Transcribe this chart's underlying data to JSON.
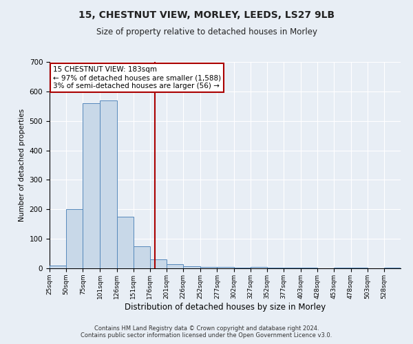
{
  "title_line1": "15, CHESTNUT VIEW, MORLEY, LEEDS, LS27 9LB",
  "title_line2": "Size of property relative to detached houses in Morley",
  "xlabel": "Distribution of detached houses by size in Morley",
  "ylabel": "Number of detached properties",
  "bar_left_edges": [
    25,
    50,
    75,
    101,
    126,
    151,
    176,
    201,
    226,
    252,
    277,
    302,
    327,
    352,
    377,
    403,
    428,
    453,
    478,
    503,
    528
  ],
  "bar_heights": [
    10,
    200,
    560,
    570,
    175,
    75,
    30,
    15,
    8,
    5,
    5,
    2,
    5,
    2,
    2,
    2,
    0,
    2,
    2,
    0,
    2
  ],
  "bar_widths": [
    25,
    25,
    26,
    25,
    25,
    25,
    25,
    25,
    26,
    25,
    25,
    25,
    25,
    25,
    26,
    25,
    25,
    25,
    25,
    25,
    25
  ],
  "bar_color": "#c8d8e8",
  "bar_edge_color": "#5588bb",
  "property_line_x": 183,
  "property_line_color": "#aa0000",
  "ylim": [
    0,
    700
  ],
  "yticks": [
    0,
    100,
    200,
    300,
    400,
    500,
    600,
    700
  ],
  "xtick_labels": [
    "25sqm",
    "50sqm",
    "75sqm",
    "101sqm",
    "126sqm",
    "151sqm",
    "176sqm",
    "201sqm",
    "226sqm",
    "252sqm",
    "277sqm",
    "302sqm",
    "327sqm",
    "352sqm",
    "377sqm",
    "403sqm",
    "428sqm",
    "453sqm",
    "478sqm",
    "503sqm",
    "528sqm"
  ],
  "annotation_text": "15 CHESTNUT VIEW: 183sqm\n← 97% of detached houses are smaller (1,588)\n3% of semi-detached houses are larger (56) →",
  "annotation_box_color": "#ffffff",
  "annotation_box_edge_color": "#aa0000",
  "footer_line1": "Contains HM Land Registry data © Crown copyright and database right 2024.",
  "footer_line2": "Contains public sector information licensed under the Open Government Licence v3.0.",
  "background_color": "#e8eef5",
  "plot_background_color": "#e8eef5",
  "grid_color": "#ffffff",
  "xlim": [
    25,
    553
  ]
}
